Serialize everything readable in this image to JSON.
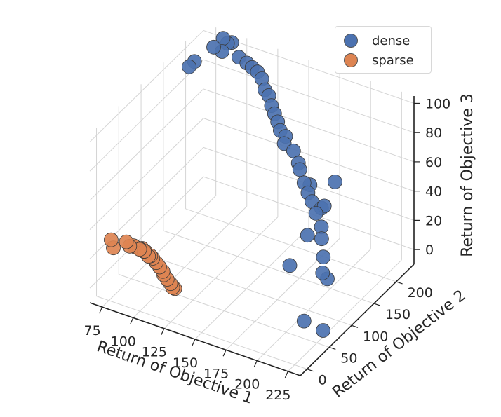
{
  "chart_data": {
    "type": "scatter",
    "title": "",
    "xlabel": "Return of Objective 1",
    "ylabel": "Return of Objective 2",
    "zlabel": "Return of Objective 3",
    "x_ticks": [
      "75",
      "100",
      "125",
      "150",
      "175",
      "200",
      "225"
    ],
    "y_ticks": [
      "0",
      "50",
      "100",
      "150",
      "200"
    ],
    "z_ticks": [
      "0",
      "20",
      "40",
      "60",
      "80",
      "100"
    ],
    "grid": true,
    "legend_position": "top-right",
    "series": [
      {
        "name": "dense",
        "color": "#4c72b0",
        "points": [
          [
            75,
            180,
            96
          ],
          [
            75,
            192,
            96
          ],
          [
            75,
            235,
            93
          ],
          [
            80,
            240,
            90
          ],
          [
            78,
            248,
            96
          ],
          [
            80,
            252,
            92
          ],
          [
            82,
            256,
            92
          ],
          [
            90,
            250,
            86
          ],
          [
            100,
            240,
            88
          ],
          [
            105,
            238,
            87
          ],
          [
            110,
            236,
            86
          ],
          [
            115,
            232,
            84
          ],
          [
            120,
            225,
            80
          ],
          [
            125,
            220,
            79
          ],
          [
            130,
            212,
            76
          ],
          [
            135,
            205,
            74
          ],
          [
            140,
            198,
            72
          ],
          [
            145,
            190,
            70
          ],
          [
            150,
            185,
            64
          ],
          [
            160,
            178,
            64
          ],
          [
            168,
            170,
            56
          ],
          [
            175,
            160,
            52
          ],
          [
            180,
            155,
            48
          ],
          [
            185,
            150,
            45
          ],
          [
            190,
            145,
            40
          ],
          [
            198,
            135,
            36
          ],
          [
            200,
            130,
            30
          ],
          [
            205,
            120,
            22
          ],
          [
            210,
            115,
            10
          ],
          [
            200,
            160,
            60
          ],
          [
            195,
            150,
            45
          ],
          [
            185,
            140,
            25
          ],
          [
            175,
            128,
            5
          ],
          [
            230,
            50,
            0
          ],
          [
            220,
            35,
            8
          ],
          [
            165,
            175,
            58
          ],
          [
            178,
            165,
            50
          ],
          [
            192,
            152,
            42
          ],
          [
            208,
            110,
            15
          ],
          [
            150,
            188,
            68
          ]
        ]
      },
      {
        "name": "sparse",
        "color": "#dd8452",
        "points": [
          [
            75,
            5,
            30
          ],
          [
            75,
            10,
            23
          ],
          [
            88,
            3,
            33
          ],
          [
            90,
            5,
            30
          ],
          [
            92,
            8,
            30
          ],
          [
            92,
            12,
            28
          ],
          [
            95,
            14,
            27
          ],
          [
            96,
            16,
            27
          ],
          [
            98,
            18,
            25
          ],
          [
            100,
            10,
            28
          ],
          [
            102,
            14,
            24
          ],
          [
            104,
            18,
            22
          ],
          [
            106,
            20,
            19
          ],
          [
            108,
            22,
            16
          ],
          [
            110,
            24,
            13
          ],
          [
            110,
            26,
            10
          ],
          [
            112,
            28,
            7
          ],
          [
            114,
            30,
            4
          ],
          [
            115,
            32,
            1
          ],
          [
            116,
            34,
            0
          ],
          [
            97,
            8,
            29
          ],
          [
            99,
            12,
            27
          ],
          [
            103,
            16,
            24
          ]
        ]
      }
    ]
  }
}
